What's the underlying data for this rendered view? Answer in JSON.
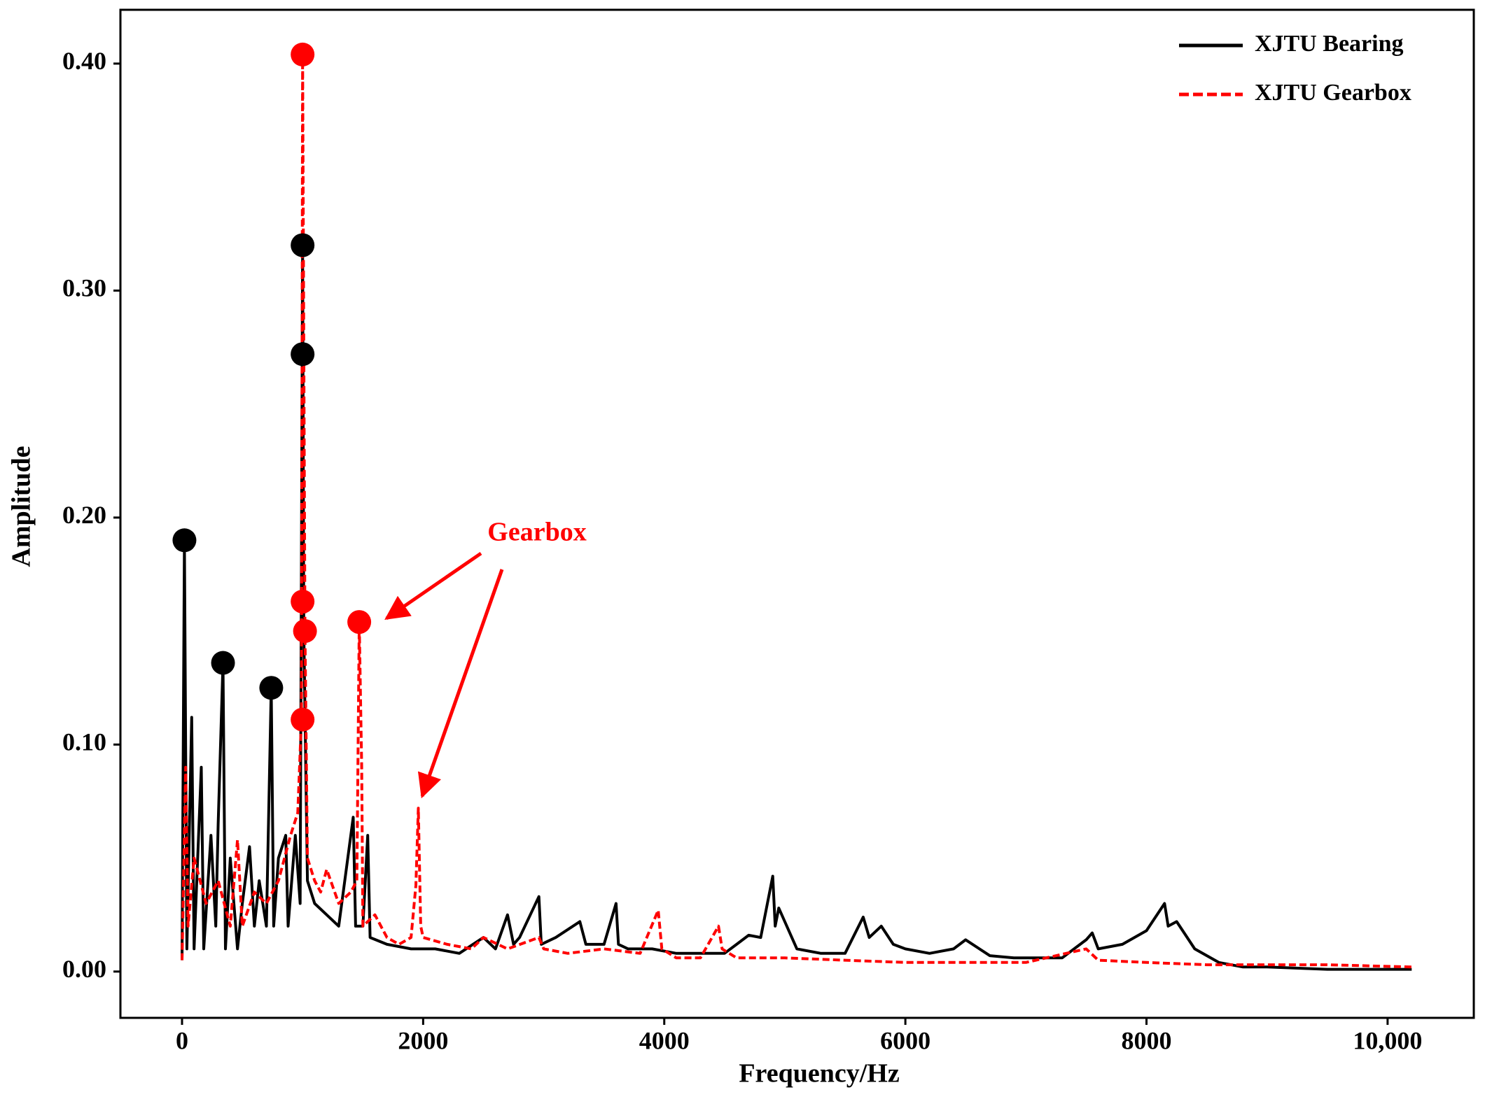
{
  "chart_data": {
    "type": "line",
    "xlabel": "Frequency/Hz",
    "ylabel": "Amplitude",
    "xlim": [
      -511,
      10715
    ],
    "ylim": [
      -0.0204,
      0.4237
    ],
    "xticks": [
      0,
      2000,
      4000,
      6000,
      8000,
      {
        "value": 10000,
        "label": "10,000"
      }
    ],
    "yticks": [
      {
        "value": 0,
        "label": "0.00"
      },
      {
        "value": 0.1,
        "label": "0.10"
      },
      {
        "value": 0.2,
        "label": "0.20"
      },
      {
        "value": 0.3,
        "label": "0.30"
      },
      {
        "value": 0.4,
        "label": "0.40"
      }
    ],
    "legend": "upper right",
    "annotation": "Gearbox",
    "series": [
      {
        "name": "XJTU Bearing",
        "color": "#000000",
        "dashed": false,
        "x": [
          0,
          20,
          40,
          80,
          100,
          160,
          180,
          240,
          280,
          300,
          340,
          360,
          400,
          460,
          500,
          560,
          600,
          640,
          700,
          740,
          760,
          800,
          860,
          880,
          940,
          980,
          1000,
          1010,
          1040,
          1100,
          1200,
          1300,
          1420,
          1440,
          1500,
          1540,
          1560,
          1700,
          1900,
          2100,
          2300,
          2500,
          2600,
          2700,
          2750,
          2800,
          2960,
          2980,
          3100,
          3300,
          3350,
          3500,
          3600,
          3620,
          3700,
          3900,
          4100,
          4300,
          4500,
          4600,
          4700,
          4800,
          4900,
          4920,
          4950,
          5100,
          5300,
          5500,
          5650,
          5700,
          5800,
          5900,
          6000,
          6200,
          6400,
          6500,
          6700,
          6900,
          7100,
          7300,
          7500,
          7550,
          7600,
          7800,
          8000,
          8150,
          8180,
          8250,
          8400,
          8600,
          8800,
          9000,
          9500,
          10200
        ],
        "values": [
          0.005,
          0.19,
          0.01,
          0.112,
          0.01,
          0.09,
          0.01,
          0.06,
          0.02,
          0.065,
          0.136,
          0.01,
          0.05,
          0.01,
          0.03,
          0.055,
          0.02,
          0.04,
          0.02,
          0.125,
          0.02,
          0.05,
          0.06,
          0.02,
          0.06,
          0.03,
          0.32,
          0.15,
          0.04,
          0.03,
          0.025,
          0.02,
          0.068,
          0.02,
          0.02,
          0.06,
          0.015,
          0.012,
          0.01,
          0.01,
          0.008,
          0.015,
          0.01,
          0.025,
          0.012,
          0.015,
          0.033,
          0.012,
          0.015,
          0.022,
          0.012,
          0.012,
          0.03,
          0.012,
          0.01,
          0.01,
          0.008,
          0.008,
          0.008,
          0.012,
          0.016,
          0.015,
          0.042,
          0.02,
          0.028,
          0.01,
          0.008,
          0.008,
          0.024,
          0.015,
          0.02,
          0.012,
          0.01,
          0.008,
          0.01,
          0.014,
          0.007,
          0.006,
          0.006,
          0.006,
          0.014,
          0.017,
          0.01,
          0.012,
          0.018,
          0.03,
          0.02,
          0.022,
          0.01,
          0.004,
          0.002,
          0.002,
          0.001,
          0.001
        ],
        "peaks": {
          "x": [
            20,
            340,
            740,
            1000,
            1000
          ],
          "values": [
            0.19,
            0.136,
            0.125,
            0.32,
            0.272
          ]
        }
      },
      {
        "name": "XJTU Gearbox",
        "color": "#ff0000",
        "dashed": true,
        "x": [
          0,
          30,
          50,
          100,
          200,
          300,
          400,
          460,
          500,
          600,
          700,
          800,
          900,
          960,
          990,
          1000,
          1020,
          1040,
          1100,
          1150,
          1200,
          1300,
          1400,
          1450,
          1470,
          1490,
          1500,
          1600,
          1700,
          1800,
          1900,
          1940,
          1960,
          1980,
          2000,
          2200,
          2400,
          2500,
          2700,
          2960,
          3000,
          3200,
          3500,
          3800,
          3950,
          3980,
          4100,
          4300,
          4450,
          4480,
          4600,
          5000,
          5500,
          6000,
          6500,
          7000,
          7500,
          7600,
          8000,
          8500,
          9000,
          9500,
          10200
        ],
        "values": [
          0.005,
          0.09,
          0.02,
          0.05,
          0.03,
          0.04,
          0.02,
          0.058,
          0.02,
          0.035,
          0.03,
          0.04,
          0.06,
          0.07,
          0.111,
          0.404,
          0.15,
          0.05,
          0.04,
          0.035,
          0.045,
          0.03,
          0.035,
          0.04,
          0.154,
          0.09,
          0.02,
          0.025,
          0.015,
          0.012,
          0.015,
          0.038,
          0.072,
          0.02,
          0.015,
          0.012,
          0.01,
          0.015,
          0.01,
          0.015,
          0.01,
          0.008,
          0.01,
          0.008,
          0.027,
          0.01,
          0.006,
          0.006,
          0.02,
          0.01,
          0.006,
          0.006,
          0.005,
          0.004,
          0.004,
          0.004,
          0.01,
          0.005,
          0.004,
          0.003,
          0.003,
          0.003,
          0.002
        ],
        "peaks": {
          "x": [
            1000,
            1000,
            1020,
            1000,
            1470
          ],
          "values": [
            0.404,
            0.163,
            0.15,
            0.111,
            0.154
          ]
        }
      }
    ]
  }
}
